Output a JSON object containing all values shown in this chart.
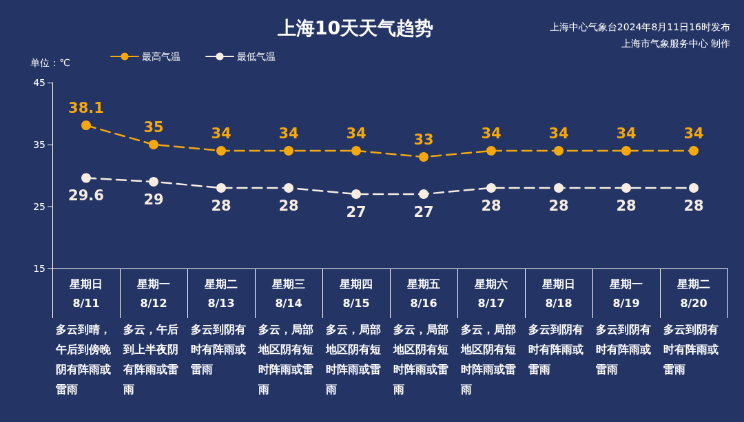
{
  "chart_data": {
    "type": "line",
    "title": "上海10天天气趋势",
    "ylabel": "单位：℃",
    "categories": [
      "星期日\n8/11",
      "星期一\n8/12",
      "星期二\n8/13",
      "星期三\n8/14",
      "星期四\n8/15",
      "星期五\n8/16",
      "星期六\n8/17",
      "星期日\n8/18",
      "星期一\n8/19",
      "星期二\n8/20"
    ],
    "series": [
      {
        "name": "最高气温",
        "color": "#f5a80c",
        "values": [
          38.1,
          35,
          34,
          34,
          34,
          33,
          34,
          34,
          34,
          34
        ]
      },
      {
        "name": "最低气温",
        "color": "#f6ede2",
        "values": [
          29.6,
          29,
          28,
          28,
          27,
          27,
          28,
          28,
          28,
          28
        ]
      }
    ],
    "ylim": [
      15,
      45
    ],
    "yticks": [
      15,
      25,
      35,
      45
    ],
    "legend": "top",
    "marker": "circle",
    "line_style": "dashed",
    "data_labels": true,
    "annotations": [
      "上海中心气象台2024年8月11日16时发布",
      "上海市气象服务中心 制作",
      "多云到晴，午后到傍晚阴有阵雨或雷雨",
      "多云，午后到上半夜阴有阵雨或雷雨",
      "多云到阴有时有阵雨或雷雨",
      "多云，局部地区阴有短时阵雨或雷雨",
      "多云，局部地区阴有短时阵雨或雷雨",
      "多云，局部地区阴有短时阵雨或雷雨",
      "多云，局部地区阴有短时阵雨或雷雨",
      "多云到阴有时有阵雨或雷雨",
      "多云到阴有时有阵雨或雷雨",
      "多云到阴有时有阵雨或雷雨"
    ]
  }
}
